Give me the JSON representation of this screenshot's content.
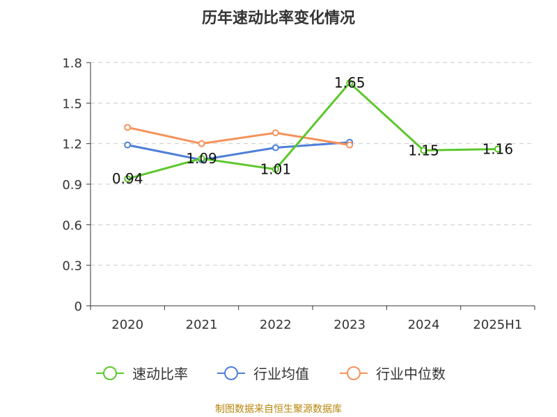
{
  "chart_data": {
    "type": "line",
    "title": "历年速动比率变化情况",
    "categories": [
      "2020",
      "2021",
      "2022",
      "2023",
      "2024",
      "2025H1"
    ],
    "ylim": [
      0,
      1.8
    ],
    "yticks": [
      "0",
      "0.3",
      "0.6",
      "0.9",
      "1.2",
      "1.5",
      "1.8"
    ],
    "ytick_values": [
      0,
      0.3,
      0.6,
      0.9,
      1.2,
      1.5,
      1.8
    ],
    "grid": true,
    "legend_position": "bottom",
    "series": [
      {
        "name": "速动比率",
        "color": "#5cc72c",
        "values": [
          0.94,
          1.09,
          1.01,
          1.65,
          1.15,
          1.16
        ],
        "labels": [
          "0.94",
          "1.09",
          "1.01",
          "1.65",
          "1.15",
          "1.16"
        ]
      },
      {
        "name": "行业均值",
        "color": "#4e7fd9",
        "values": [
          1.19,
          1.08,
          1.17,
          1.21,
          null,
          null
        ]
      },
      {
        "name": "行业中位数",
        "color": "#f5925a",
        "values": [
          1.32,
          1.2,
          1.28,
          1.19,
          null,
          null
        ]
      }
    ]
  },
  "footer": {
    "source": "制图数据来自恒生聚源数据库"
  }
}
